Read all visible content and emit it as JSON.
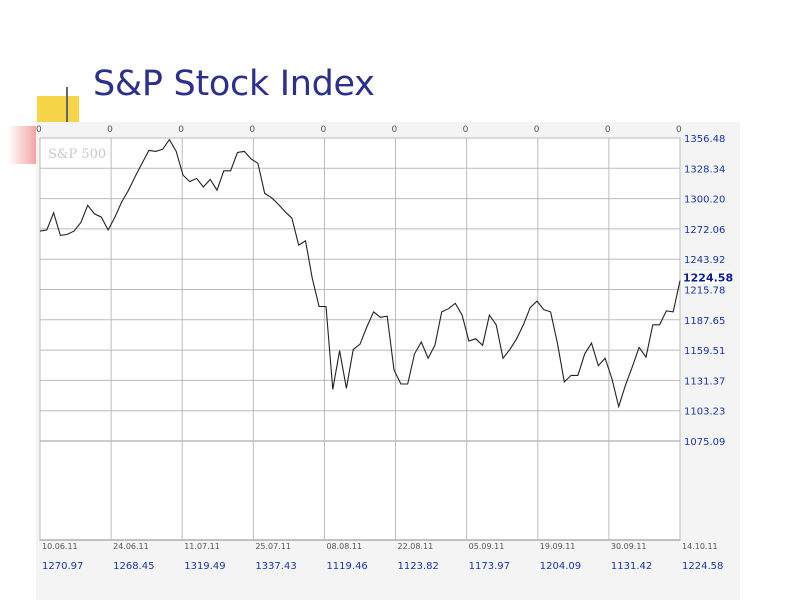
{
  "slide": {
    "title": "S&P Stock Index"
  },
  "chart_data": {
    "type": "line",
    "watermark": "S&P 500",
    "top_axis_labels": [
      "0",
      "0",
      "0",
      "0",
      "0",
      "0",
      "0",
      "0",
      "0",
      "0"
    ],
    "date_labels": [
      "10.06.11",
      "24.06.11",
      "11.07.11",
      "25.07.11",
      "08.08.11",
      "22.08.11",
      "05.09.11",
      "19.09.11",
      "30.09.11",
      "14.10.11"
    ],
    "value_labels": [
      "1270.97",
      "1268.45",
      "1319.49",
      "1337.43",
      "1119.46",
      "1123.82",
      "1173.97",
      "1204.09",
      "1131.42",
      "1224.58"
    ],
    "y_ticks": [
      1356.48,
      1328.34,
      1300.2,
      1272.06,
      1243.92,
      1215.78,
      1187.65,
      1159.51,
      1131.37,
      1103.23,
      1075.09
    ],
    "ylim": [
      1075.09,
      1356.48
    ],
    "last_value_label": "1224.58",
    "colors": {
      "line": "#222222",
      "grid": "#bbbbbb",
      "axis_text": "#1a33aa",
      "date_text": "#555555",
      "last_value": "#0a1aa0"
    },
    "series": [
      {
        "values": [
          1270,
          1271,
          1287,
          1266,
          1267,
          1270,
          1278,
          1294,
          1286,
          1283,
          1271,
          1283,
          1297,
          1308,
          1321,
          1333,
          1345,
          1344,
          1346,
          1355,
          1344,
          1322,
          1316,
          1319,
          1311,
          1318,
          1308,
          1326,
          1326,
          1343,
          1344,
          1337,
          1333,
          1305,
          1301,
          1295,
          1288,
          1282,
          1257,
          1261,
          1226,
          1200,
          1200,
          1123,
          1159,
          1124,
          1160,
          1165,
          1181,
          1195,
          1190,
          1191,
          1141,
          1128,
          1128,
          1156,
          1167,
          1152,
          1164,
          1195,
          1198,
          1203,
          1192,
          1168,
          1170,
          1164,
          1192,
          1183,
          1152,
          1160,
          1170,
          1183,
          1199,
          1205,
          1197,
          1195,
          1166,
          1130,
          1136,
          1136,
          1156,
          1166,
          1145,
          1152,
          1133,
          1107,
          1127,
          1144,
          1162,
          1153,
          1183,
          1183,
          1196,
          1195,
          1224
        ]
      }
    ]
  }
}
